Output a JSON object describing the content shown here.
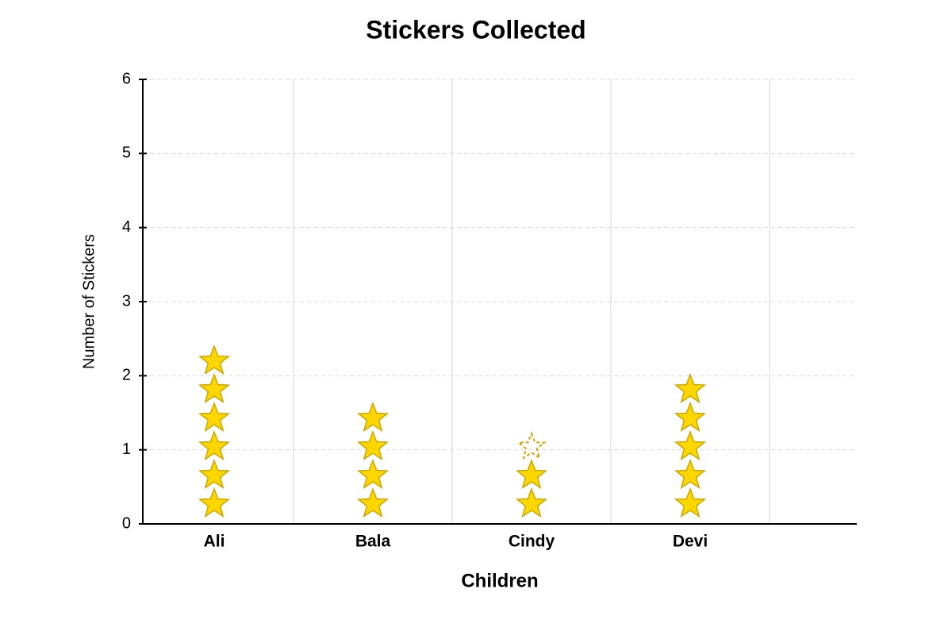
{
  "chart_data": {
    "type": "pictograph",
    "title": "Stickers Collected",
    "x_label": "Children",
    "y_label": "Number of Stickers",
    "categories": [
      "Ali",
      "Bala",
      "Cindy",
      "Devi"
    ],
    "values": [
      6,
      4,
      2.5,
      5
    ],
    "color": "#ffd700",
    "ylim": [
      0,
      6
    ],
    "yticks": [
      0,
      1,
      2,
      3,
      4,
      5,
      6
    ],
    "grid": true
  }
}
